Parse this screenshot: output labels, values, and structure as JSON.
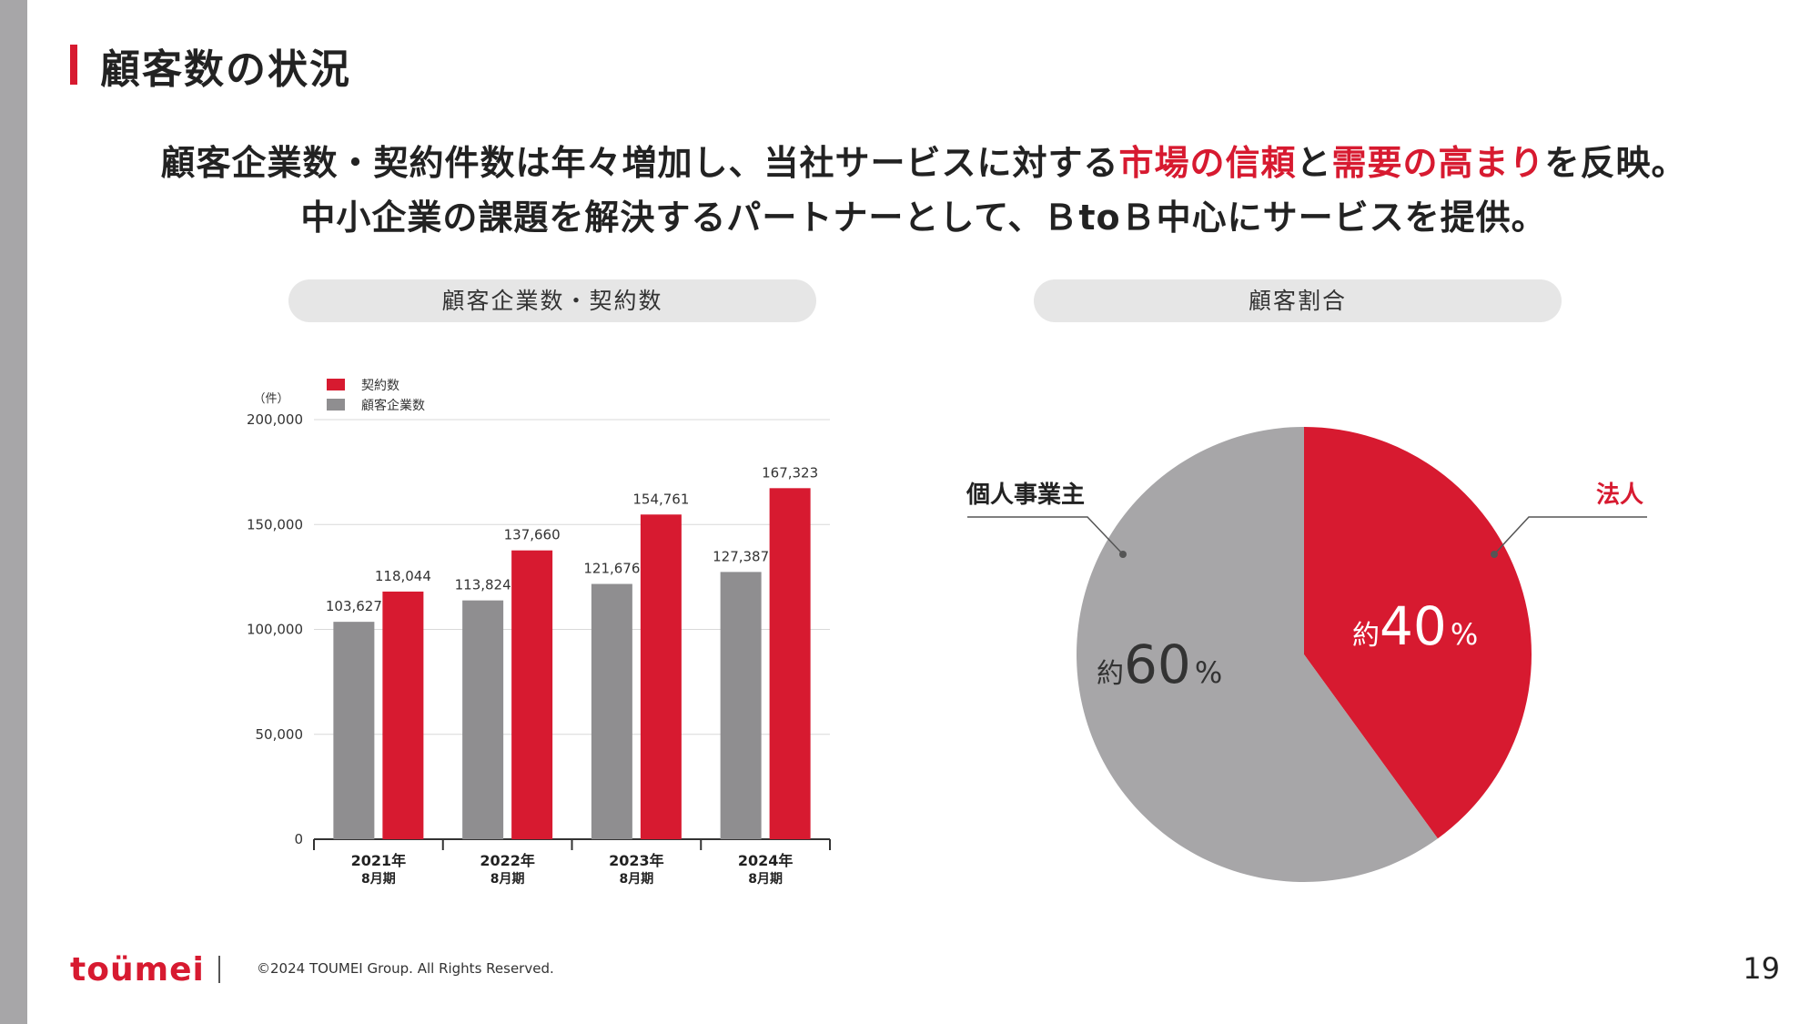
{
  "page_title": "顧客数の状況",
  "lead": {
    "line1_a": "顧客企業数・契約件数は年々増加し、当社サービスに対する",
    "line1_hl1": "市場の信頼",
    "line1_b": "と",
    "line1_hl2": "需要の高まり",
    "line1_c": "を反映。",
    "line2": "中小企業の課題を解決するパートナーとして、ＢtoＢ中心にサービスを提供。"
  },
  "pills": {
    "left": "顧客企業数・契約数",
    "right": "顧客割合"
  },
  "colors": {
    "accent": "#d71a30",
    "gray": "#8f8e90",
    "pie_gray": "#a7a6a8",
    "side_bar": "#a7a6a8"
  },
  "chart_data": [
    {
      "type": "bar",
      "unit_label": "（件）",
      "categories": [
        "2021年",
        "2022年",
        "2023年",
        "2024年"
      ],
      "category_sub": [
        "8月期",
        "8月期",
        "8月期",
        "8月期"
      ],
      "ylim": [
        0,
        200000
      ],
      "yticks": [
        0,
        50000,
        100000,
        150000,
        200000
      ],
      "ytick_labels": [
        "0",
        "50,000",
        "100,000",
        "150,000",
        "200,000"
      ],
      "grid": true,
      "legend_position": "top-left",
      "series": [
        {
          "name": "顧客企業数",
          "color": "#8f8e90",
          "values": [
            103627,
            113824,
            121676,
            127387
          ],
          "labels": [
            "103,627",
            "113,824",
            "121,676",
            "127,387"
          ]
        },
        {
          "name": "契約数",
          "color": "#d71a30",
          "values": [
            118044,
            137660,
            154761,
            167323
          ],
          "labels": [
            "118,044",
            "137,660",
            "154,761",
            "167,323"
          ]
        }
      ],
      "legend_order": [
        "契約数",
        "顧客企業数"
      ]
    },
    {
      "type": "pie",
      "slices": [
        {
          "name": "法人",
          "value": 40,
          "color": "#d71a30",
          "prefix": "約",
          "number": "40",
          "suffix": "%"
        },
        {
          "name": "個人事業主",
          "value": 60,
          "color": "#a7a6a8",
          "prefix": "約",
          "number": "60",
          "suffix": "%"
        }
      ]
    }
  ],
  "footer": {
    "logo": "toümei",
    "copyright": "©2024 TOUMEI Group. All Rights Reserved.",
    "page_number": "19"
  }
}
